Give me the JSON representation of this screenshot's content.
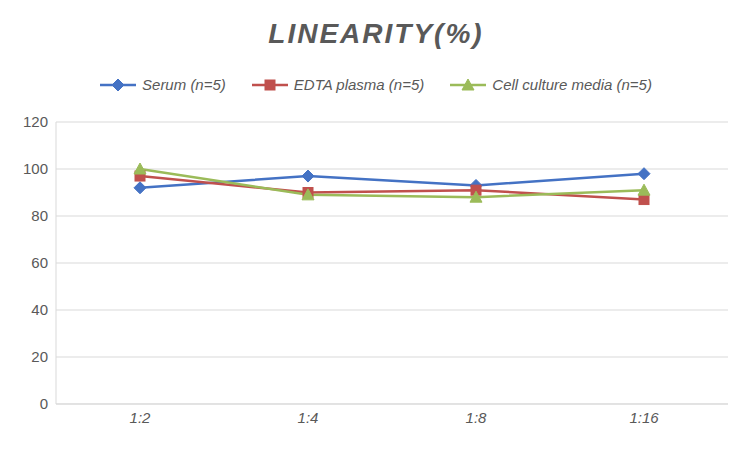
{
  "chart_data": {
    "type": "line",
    "title": "LINEARITY(%)",
    "categories": [
      "1:2",
      "1:4",
      "1:8",
      "1:16"
    ],
    "series": [
      {
        "name": "Serum (n=5)",
        "color": "#4472c4",
        "marker": "diamond",
        "values": [
          92,
          97,
          93,
          98
        ]
      },
      {
        "name": "EDTA plasma (n=5)",
        "color": "#c0504d",
        "marker": "square",
        "values": [
          97,
          90,
          91,
          87
        ]
      },
      {
        "name": "Cell culture media (n=5)",
        "color": "#9bbb59",
        "marker": "triangle",
        "values": [
          100,
          89,
          88,
          91
        ]
      }
    ],
    "ylim": [
      0,
      120
    ],
    "yticks": [
      0,
      20,
      40,
      60,
      80,
      100,
      120
    ],
    "grid": true,
    "legend": "top"
  }
}
